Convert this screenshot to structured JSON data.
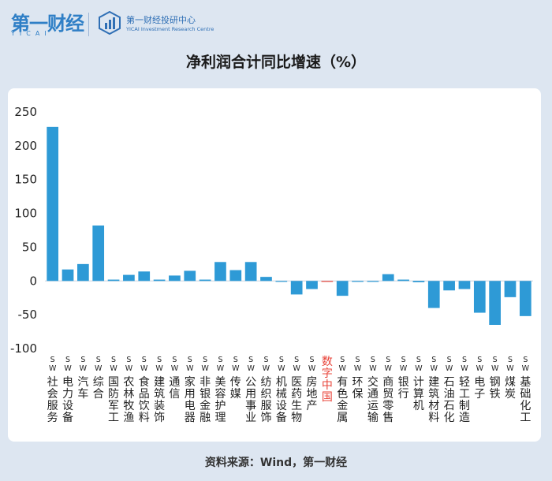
{
  "header": {
    "logo_main": "第一财经",
    "logo_sub": "YICAI",
    "institute_name": "第一财经投研中心",
    "institute_sub": "YICAI Investment Research Centre"
  },
  "source": "资料来源：Wind，第一财经",
  "chart_data": {
    "type": "bar",
    "title": "净利润合计同比增速（%）",
    "xlabel": "",
    "ylabel": "",
    "ylim": [
      -100,
      250
    ],
    "yticks": [
      250,
      200,
      150,
      100,
      50,
      0,
      -50,
      -100
    ],
    "grid": false,
    "bar_color": "#2e9ad6",
    "highlight_color": "#e8443a",
    "categories": [
      {
        "prefix": "SW",
        "label": "社会服务",
        "value": 228,
        "highlight": false
      },
      {
        "prefix": "SW",
        "label": "电力设备",
        "value": 17,
        "highlight": false
      },
      {
        "prefix": "SW",
        "label": "汽车",
        "value": 25,
        "highlight": false
      },
      {
        "prefix": "SW",
        "label": "综合",
        "value": 82,
        "highlight": false
      },
      {
        "prefix": "SW",
        "label": "国防军工",
        "value": 2,
        "highlight": false
      },
      {
        "prefix": "SW",
        "label": "农林牧渔",
        "value": 9,
        "highlight": false
      },
      {
        "prefix": "SW",
        "label": "食品饮料",
        "value": 14,
        "highlight": false
      },
      {
        "prefix": "SW",
        "label": "建筑装饰",
        "value": 2,
        "highlight": false
      },
      {
        "prefix": "SW",
        "label": "通信",
        "value": 8,
        "highlight": false
      },
      {
        "prefix": "SW",
        "label": "家用电器",
        "value": 15,
        "highlight": false
      },
      {
        "prefix": "SW",
        "label": "非银金融",
        "value": 2,
        "highlight": false
      },
      {
        "prefix": "SW",
        "label": "美容护理",
        "value": 28,
        "highlight": false
      },
      {
        "prefix": "SW",
        "label": "传媒",
        "value": 16,
        "highlight": false
      },
      {
        "prefix": "SW",
        "label": "公用事业",
        "value": 28,
        "highlight": false
      },
      {
        "prefix": "SW",
        "label": "纺织服饰",
        "value": 6,
        "highlight": false
      },
      {
        "prefix": "SW",
        "label": "机械设备",
        "value": -1,
        "highlight": false
      },
      {
        "prefix": "SW",
        "label": "医药生物",
        "value": -20,
        "highlight": false
      },
      {
        "prefix": "SW",
        "label": "房地产",
        "value": -12,
        "highlight": false
      },
      {
        "prefix": "",
        "label": "数字中国",
        "value": -1,
        "highlight": true
      },
      {
        "prefix": "SW",
        "label": "有色金属",
        "value": -22,
        "highlight": false
      },
      {
        "prefix": "SW",
        "label": "环保",
        "value": -1,
        "highlight": false
      },
      {
        "prefix": "SW",
        "label": "交通运输",
        "value": -1,
        "highlight": false
      },
      {
        "prefix": "SW",
        "label": "商贸零售",
        "value": 10,
        "highlight": false
      },
      {
        "prefix": "SW",
        "label": "银行",
        "value": 2,
        "highlight": false
      },
      {
        "prefix": "SW",
        "label": "计算机",
        "value": -2,
        "highlight": false
      },
      {
        "prefix": "SW",
        "label": "建筑材料",
        "value": -40,
        "highlight": false
      },
      {
        "prefix": "SW",
        "label": "石油石化",
        "value": -14,
        "highlight": false
      },
      {
        "prefix": "SW",
        "label": "轻工制造",
        "value": -12,
        "highlight": false
      },
      {
        "prefix": "SW",
        "label": "电子",
        "value": -47,
        "highlight": false
      },
      {
        "prefix": "SW",
        "label": "钢铁",
        "value": -65,
        "highlight": false
      },
      {
        "prefix": "SW",
        "label": "煤炭",
        "value": -24,
        "highlight": false
      },
      {
        "prefix": "SW",
        "label": "基础化工",
        "value": -52,
        "highlight": false
      }
    ]
  }
}
